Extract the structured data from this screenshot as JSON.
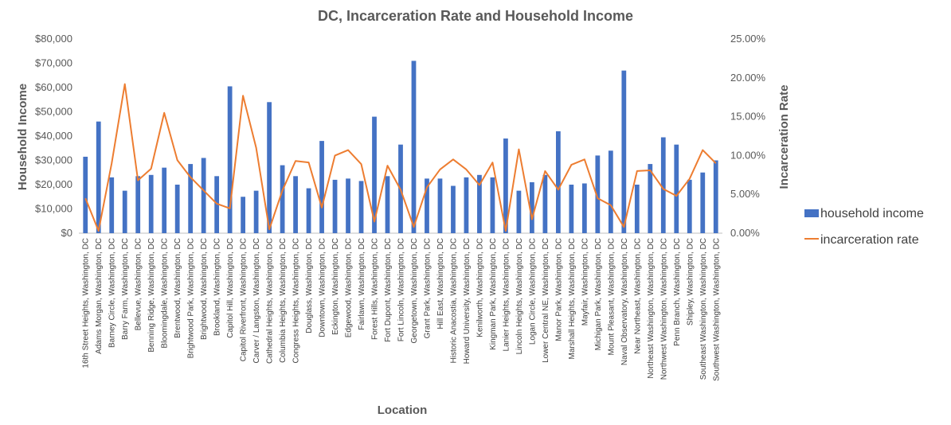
{
  "chart_data": {
    "type": "bar",
    "combo": "bar + line (secondary axis)",
    "title": "DC, Incarceration Rate and Household Income",
    "xlabel": "Location",
    "ylabel": "Household Income",
    "y2label": "Incarceration Rate",
    "ylim": [
      0,
      80000
    ],
    "y2lim": [
      0,
      0.25
    ],
    "y_ticks": [
      "$0",
      "$10,000",
      "$20,000",
      "$30,000",
      "$40,000",
      "$50,000",
      "$60,000",
      "$70,000",
      "$80,000"
    ],
    "y2_ticks": [
      "0.00%",
      "5.00%",
      "10.00%",
      "15.00%",
      "20.00%",
      "25.00%"
    ],
    "grid": false,
    "legend_position": "right",
    "categories": [
      "16th Street Heights, Washington, DC",
      "Adams Morgan, Washington, DC",
      "Barney Circle, Washington, DC",
      "Barry Farm, Washington, DC",
      "Bellevue, Washington, DC",
      "Benning Ridge, Washington, DC",
      "Bloomingdale, Washington, DC",
      "Brentwood, Washington, DC",
      "Brightwood Park, Washington, DC",
      "Brightwood, Washington, DC",
      "Brookland, Washington, DC",
      "Capitol Hill, Washington, DC",
      "Capitol Riverfront, Washington, DC",
      "Carver / Langston, Washington, DC",
      "Cathedral Heights, Washington, DC",
      "Columbia Heights, Washington, DC",
      "Congress Heights, Washington, DC",
      "Douglass, Washington, DC",
      "Downtown, Washington, DC",
      "Eckington, Washington, DC",
      "Edgewood, Washington, DC",
      "Fairlawn, Washington, DC",
      "Forest Hills, Washington, DC",
      "Fort Dupont, Washington, DC",
      "Fort Lincoln, Washington, DC",
      "Georgetown, Washington, DC",
      "Grant Park, Washington, DC",
      "Hill East, Washington, DC",
      "Historic Anacostia, Washington, DC",
      "Howard University, Washington, DC",
      "Kenilworth, Washington, DC",
      "Kingman Park, Washington, DC",
      "Lanier Heights, Washington, DC",
      "Lincoln Heights, Washington, DC",
      "Logan Circle, Washington, DC",
      "Lower Central NE, Washington, DC",
      "Manor Park, Washington, DC",
      "Marshall Heights, Washington, DC",
      "Mayfair, Washington, DC",
      "Michigan Park, Washington, DC",
      "Mount Pleasant, Washington, DC",
      "Naval Observatory, Washington, DC",
      "Near Northeast, Washington, DC",
      "Northeast Washington, Washington, DC",
      "Northwest Washington, Washington, DC",
      "Penn Branch, Washington, DC",
      "Shipley, Washington, DC",
      "Southeast Washington, Washington, DC",
      "Southwest Washington, Washington, DC"
    ],
    "series": [
      {
        "name": "household income",
        "axis": "primary",
        "kind": "bar",
        "color": "#4472C4",
        "values": [
          31500,
          46000,
          23000,
          17500,
          23500,
          24000,
          27000,
          20000,
          28500,
          31000,
          23500,
          60500,
          15000,
          17500,
          54000,
          28000,
          23500,
          18500,
          38000,
          22000,
          22500,
          21500,
          48000,
          23500,
          36500,
          71000,
          22500,
          22500,
          19500,
          23000,
          24000,
          23000,
          39000,
          17500,
          21000,
          24000,
          42000,
          20000,
          20500,
          32000,
          34000,
          67000,
          20000,
          28500,
          39500,
          36500,
          22000,
          25000,
          30000
        ]
      },
      {
        "name": "incarceration rate",
        "axis": "secondary",
        "kind": "line",
        "color": "#ED7D31",
        "values": [
          0.045,
          0.003,
          0.09,
          0.192,
          0.068,
          0.083,
          0.155,
          0.094,
          0.072,
          0.055,
          0.038,
          0.032,
          0.177,
          0.11,
          0.005,
          0.055,
          0.093,
          0.091,
          0.033,
          0.1,
          0.107,
          0.089,
          0.015,
          0.087,
          0.056,
          0.008,
          0.059,
          0.082,
          0.095,
          0.082,
          0.062,
          0.091,
          0.003,
          0.108,
          0.018,
          0.08,
          0.056,
          0.088,
          0.095,
          0.045,
          0.036,
          0.008,
          0.08,
          0.081,
          0.057,
          0.048,
          0.07,
          0.107,
          0.09
        ]
      }
    ]
  }
}
